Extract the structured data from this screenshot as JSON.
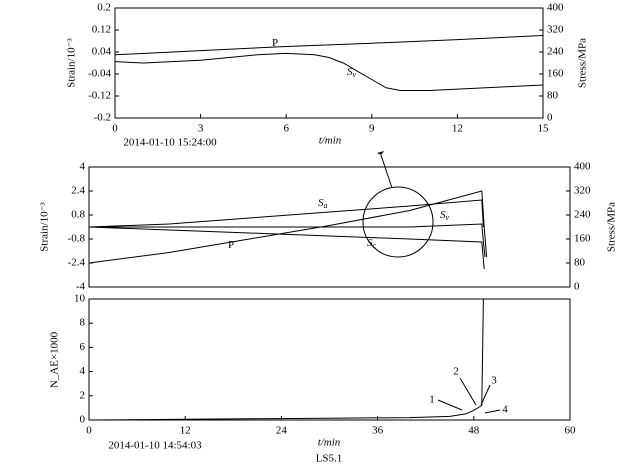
{
  "chart_data": [
    {
      "type": "line",
      "x_label": "t/min",
      "y_label": "Strain/10⁻³",
      "y2_label": "Stress/MPa",
      "xlim": [
        0,
        15
      ],
      "xticks": [
        0,
        3,
        6,
        9,
        12,
        15
      ],
      "ylim": [
        -0.2,
        0.2
      ],
      "yticks": [
        -0.2,
        -0.12,
        -0.04,
        0.04,
        0.12,
        0.2
      ],
      "y2lim": [
        0,
        400
      ],
      "y2ticks": [
        0,
        80,
        160,
        240,
        320,
        400
      ],
      "series": [
        {
          "label": {
            "main": "P"
          },
          "color": "#000",
          "axis": "y2",
          "x": [
            0,
            3,
            6,
            9,
            12,
            15
          ],
          "values": [
            230,
            245,
            260,
            272,
            285,
            300
          ]
        },
        {
          "label": {
            "main": "S",
            "sub": "v"
          },
          "color": "#000",
          "x": [
            0,
            1,
            2,
            3,
            4,
            5,
            6,
            7,
            7.5,
            8,
            8.5,
            9,
            9.5,
            10,
            11,
            12,
            13,
            14,
            15
          ],
          "values": [
            0.005,
            0,
            0.005,
            0.01,
            0.02,
            0.03,
            0.035,
            0.03,
            0.02,
            0,
            -0.03,
            -0.06,
            -0.09,
            -0.1,
            -0.1,
            -0.095,
            -0.09,
            -0.085,
            -0.08
          ]
        }
      ],
      "annotations": [
        "2014-01-10 15:24:00"
      ]
    },
    {
      "type": "line",
      "y_label": "Strain/10⁻³",
      "y2_label": "Stress/MPa",
      "xlim": [
        0,
        60
      ],
      "ylim": [
        -4,
        4
      ],
      "yticks": [
        -4,
        -2.4,
        -0.8,
        0.8,
        2.4,
        4
      ],
      "y2lim": [
        0,
        400
      ],
      "y2ticks": [
        0,
        80,
        160,
        240,
        320,
        400
      ],
      "series": [
        {
          "label": {
            "main": "S",
            "sub": "a"
          },
          "color": "#000",
          "x": [
            0,
            10,
            20,
            30,
            40,
            49,
            49.2
          ],
          "values": [
            0,
            0.2,
            0.6,
            1,
            1.4,
            1.8,
            0
          ]
        },
        {
          "label": {
            "main": "S",
            "sub": "v"
          },
          "color": "#000",
          "x": [
            0,
            20,
            40,
            49,
            49.2,
            49.4
          ],
          "values": [
            0,
            0,
            0,
            0.2,
            -1,
            -2
          ]
        },
        {
          "label": {
            "main": "S",
            "sub": "c"
          },
          "color": "#000",
          "x": [
            0,
            10,
            20,
            30,
            40,
            49,
            49.3
          ],
          "values": [
            0,
            -0.2,
            -0.4,
            -0.6,
            -0.8,
            -1,
            -2.8
          ]
        },
        {
          "label": {
            "main": "P"
          },
          "color": "#000",
          "axis": "y2",
          "x": [
            0,
            10,
            20,
            30,
            40,
            49,
            49.3,
            49.6
          ],
          "values": [
            80,
            115,
            160,
            205,
            255,
            320,
            200,
            100
          ]
        }
      ]
    },
    {
      "type": "line",
      "x_label": "t/min",
      "y_label": "N_AE×1000",
      "xlim": [
        0,
        60
      ],
      "xticks": [
        0,
        12,
        24,
        36,
        48,
        60
      ],
      "ylim": [
        0,
        10
      ],
      "yticks": [
        0,
        2,
        4,
        6,
        8,
        10
      ],
      "series": [
        {
          "color": "#000",
          "x": [
            0,
            10,
            20,
            30,
            40,
            45,
            47,
            48,
            49,
            49.2,
            49.3,
            60
          ],
          "values": [
            0,
            0.05,
            0.1,
            0.15,
            0.2,
            0.3,
            0.5,
            0.8,
            1.2,
            10,
            10,
            10
          ]
        }
      ],
      "annotations": [
        "1",
        "2",
        "3",
        "4",
        "2014-01-10 14:54:03",
        "LS5.1"
      ]
    }
  ]
}
